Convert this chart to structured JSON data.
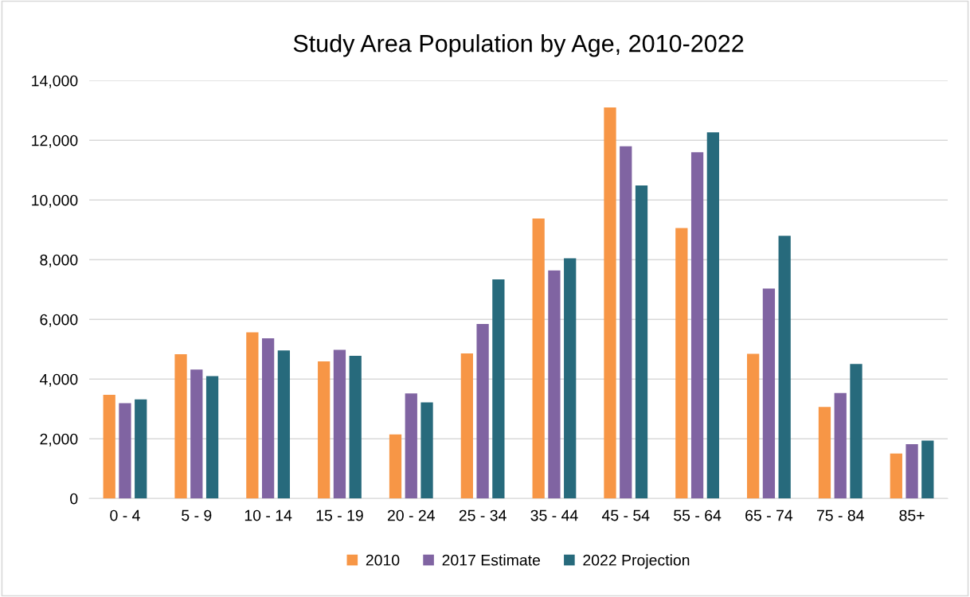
{
  "chart_data": {
    "type": "bar",
    "title": "Study Area Population by Age, 2010-2022",
    "categories": [
      "0 - 4",
      "5 - 9",
      "10 - 14",
      "15 - 19",
      "20 - 24",
      "25 - 34",
      "35 - 44",
      "45 - 54",
      "55 - 64",
      "65 - 74",
      "75 - 84",
      "85+"
    ],
    "series": [
      {
        "name": "2010",
        "color": "#f79646",
        "values": [
          3470,
          4830,
          5570,
          4590,
          2150,
          4860,
          9380,
          13100,
          9060,
          4850,
          3070,
          1510
        ]
      },
      {
        "name": "2017 Estimate",
        "color": "#8064a2",
        "values": [
          3190,
          4320,
          5370,
          4980,
          3520,
          5850,
          7640,
          11800,
          11600,
          7030,
          3530,
          1820
        ]
      },
      {
        "name": "2022 Projection",
        "color": "#276a7c",
        "values": [
          3320,
          4100,
          4960,
          4780,
          3220,
          7340,
          8050,
          10490,
          12270,
          8800,
          4510,
          1940
        ]
      }
    ],
    "ylim": [
      0,
      14000
    ],
    "yticks": [
      {
        "value": 0,
        "label": "0"
      },
      {
        "value": 2000,
        "label": "2,000"
      },
      {
        "value": 4000,
        "label": "4,000"
      },
      {
        "value": 6000,
        "label": "6,000"
      },
      {
        "value": 8000,
        "label": "8,000"
      },
      {
        "value": 10000,
        "label": "10,000"
      },
      {
        "value": 12000,
        "label": "12,000"
      },
      {
        "value": 14000,
        "label": "14,000"
      }
    ],
    "grid": "y",
    "legend": "bottom"
  }
}
